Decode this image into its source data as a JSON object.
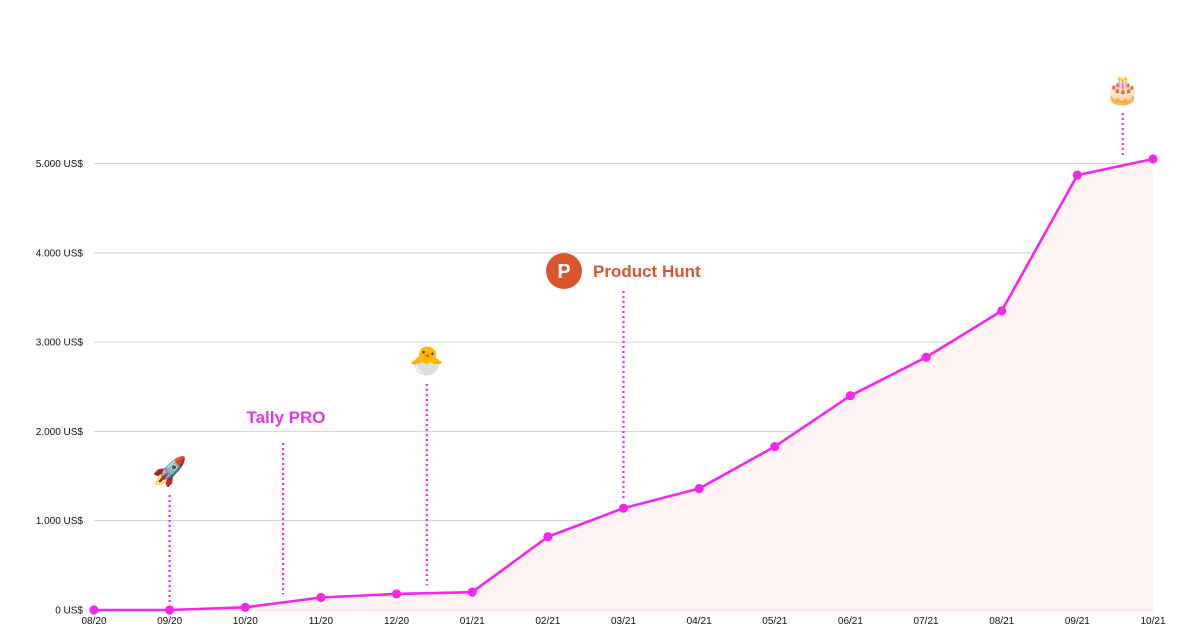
{
  "chart_data": {
    "type": "area",
    "categories": [
      "08/20",
      "09/20",
      "10/20",
      "11/20",
      "12/20",
      "01/21",
      "02/21",
      "03/21",
      "04/21",
      "05/21",
      "06/21",
      "07/21",
      "08/21",
      "09/21",
      "10/21"
    ],
    "series": [
      {
        "values": [
          0,
          0,
          30,
          140,
          180,
          200,
          820,
          1140,
          1360,
          1830,
          2400,
          2830,
          3350,
          4870,
          5050
        ]
      }
    ],
    "yticks": [
      0,
      1000,
      2000,
      3000,
      4000,
      5000
    ],
    "ytick_labels": [
      "0 US$",
      "1.000 US$",
      "2.000 US$",
      "3.000 US$",
      "4.000 US$",
      "5.000 US$"
    ],
    "ylim": [
      0,
      5000
    ],
    "grid": true,
    "colors": {
      "line": "#f227e8",
      "fill": "#fdf3f3",
      "grid": "#c8c8c8",
      "pro": "#e236ee",
      "product_hunt": "#d8552e"
    },
    "annotations": [
      {
        "x": 1,
        "icon": "rocket-icon",
        "glyph": "🚀",
        "text": ""
      },
      {
        "x": 2.5,
        "icon": "",
        "glyph": "",
        "text": "Tally PRO"
      },
      {
        "x": 4.4,
        "icon": "hatching-chick-icon",
        "glyph": "🐣",
        "text": ""
      },
      {
        "x": 7,
        "icon": "product-hunt-logo-icon",
        "glyph": "P",
        "text": "Product Hunt"
      },
      {
        "x": 13.6,
        "icon": "birthday-cake-icon",
        "glyph": "🎂",
        "text": ""
      }
    ]
  }
}
